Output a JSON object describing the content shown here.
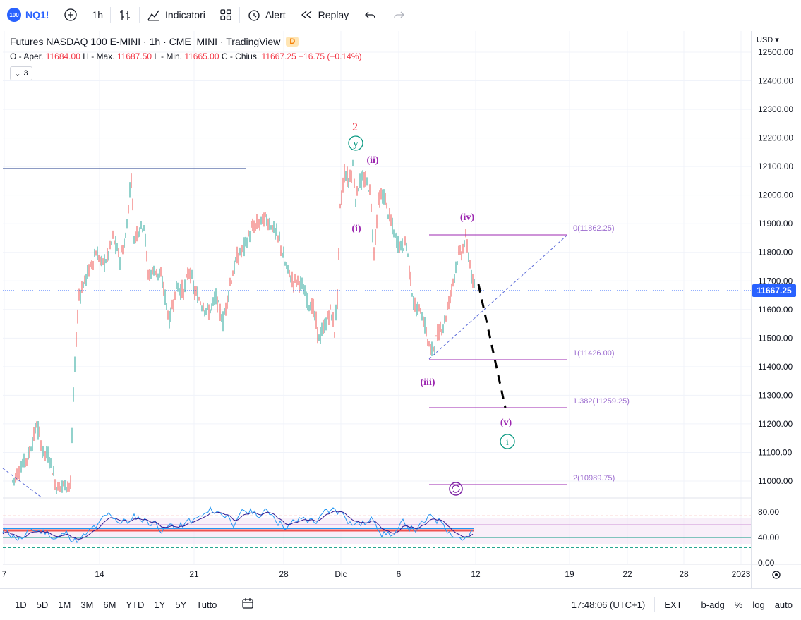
{
  "toolbar": {
    "symbol_badge": "100",
    "symbol": "NQ1!",
    "interval": "1h",
    "indicators": "Indicatori",
    "alert": "Alert",
    "replay": "Replay"
  },
  "legend": {
    "title": "Futures NASDAQ 100 E-MINI · 1h · CME_MINI · TradingView",
    "badge": "D",
    "o_label": "O - Aper.",
    "o_val": "11684.00",
    "h_label": "H - Max.",
    "h_val": "11687.50",
    "l_label": "L - Min.",
    "l_val": "11665.00",
    "c_label": "C - Chius.",
    "c_val": "11667.25",
    "change": "−16.75 (−0.14%)",
    "collapsed_count": "3"
  },
  "price_axis": {
    "currency": "USD",
    "last_price": "11667.25",
    "last_price_color": "#2962ff",
    "ticks": [
      "12500.00",
      "12400.00",
      "12300.00",
      "12200.00",
      "12100.00",
      "12000.00",
      "11900.00",
      "11800.00",
      "11700.00",
      "11600.00",
      "11500.00",
      "11400.00",
      "11300.00",
      "11200.00",
      "11100.00",
      "11000.00"
    ],
    "rsi_ticks": [
      "80.00",
      "40.00",
      "0.00"
    ]
  },
  "time_axis": {
    "ticks": [
      "7",
      "14",
      "21",
      "28",
      "Dic",
      "6",
      "12",
      "19",
      "22",
      "28",
      "2023"
    ]
  },
  "annotations": {
    "wave2": "2",
    "wave_y": "y",
    "wave_ii": "(ii)",
    "wave_i": "(i)",
    "wave_iii": "(iii)",
    "wave_iv": "(iv)",
    "wave_v": "(v)",
    "wave_i_circle": "i"
  },
  "fib_levels": [
    {
      "label": "0(11862.25)"
    },
    {
      "label": "1(11426.00)"
    },
    {
      "label": "1.382(11259.25)"
    },
    {
      "label": "2(10989.75)"
    }
  ],
  "colors": {
    "up": "#26a69a",
    "down": "#ef5350",
    "purple": "#9c27b0",
    "teal": "#089981",
    "red_label": "#f23645"
  },
  "bottom": {
    "ranges": [
      "1D",
      "5D",
      "1M",
      "3M",
      "6M",
      "YTD",
      "1Y",
      "5Y",
      "Tutto"
    ],
    "clock": "17:48:06 (UTC+1)",
    "ext": "EXT",
    "badj": "b-adg",
    "pct": "%",
    "log": "log",
    "auto": "auto"
  }
}
